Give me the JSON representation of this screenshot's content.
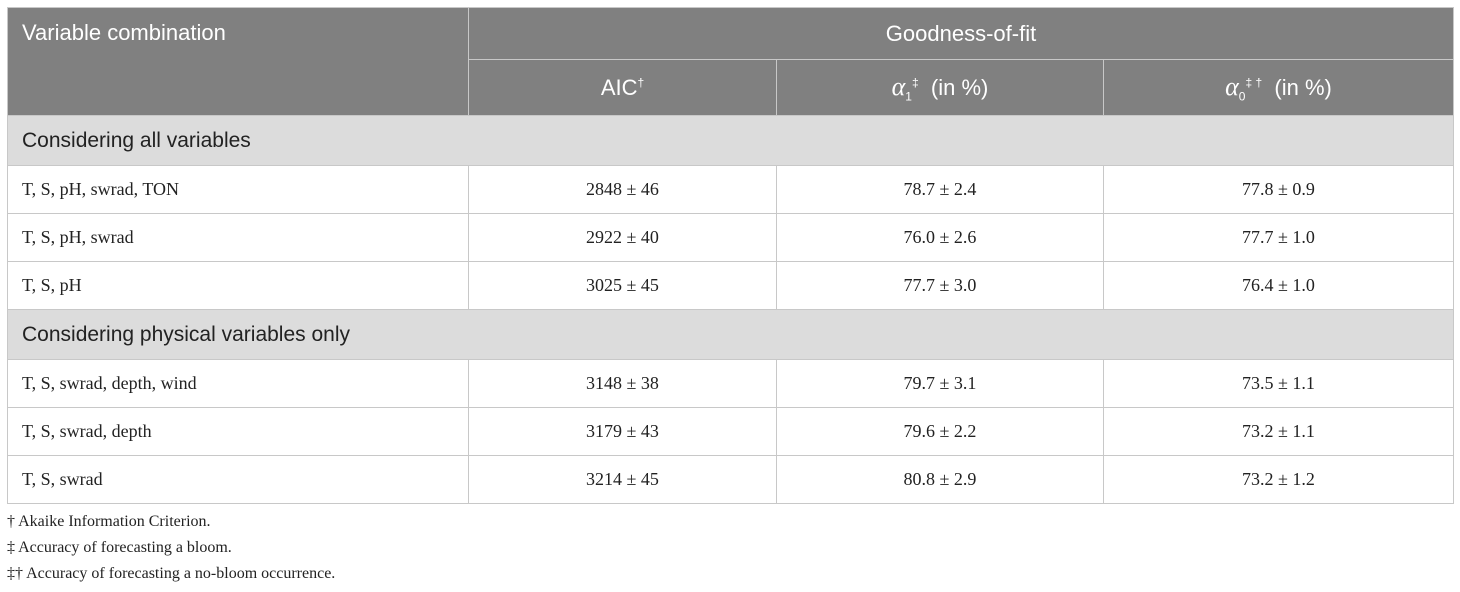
{
  "table": {
    "header": {
      "variable": "Variable combination",
      "group": "Goodness-of-fit",
      "aic": {
        "text": "AIC",
        "sup": "†"
      },
      "alpha1": {
        "symbol": "α",
        "sub": "1",
        "sup": "‡",
        "text": "(in %)"
      },
      "alpha0": {
        "symbol": "α",
        "sub": "0",
        "sup": "‡ †",
        "text": "(in %)"
      }
    },
    "sections": [
      {
        "title": "Considering all variables",
        "rows": [
          [
            "T, S, pH, swrad, TON",
            "2848 ± 46",
            "78.7 ± 2.4",
            "77.8 ± 0.9"
          ],
          [
            "T, S, pH, swrad",
            "2922 ± 40",
            "76.0 ± 2.6",
            "77.7 ± 1.0"
          ],
          [
            "T, S, pH",
            "3025 ± 45",
            "77.7 ± 3.0",
            "76.4 ± 1.0"
          ]
        ]
      },
      {
        "title": "Considering physical variables only",
        "rows": [
          [
            "T, S, swrad, depth, wind",
            "3148 ± 38",
            "79.7 ± 3.1",
            "73.5 ± 1.1"
          ],
          [
            "T, S, swrad, depth",
            "3179 ± 43",
            "79.6 ± 2.2",
            "73.2 ± 1.1"
          ],
          [
            "T, S, swrad",
            "3214 ± 45",
            "80.8 ± 2.9",
            "73.2 ± 1.2"
          ]
        ]
      }
    ],
    "footnotes": [
      "† Akaike Information Criterion.",
      "‡ Accuracy of forecasting a bloom.",
      "‡† Accuracy of forecasting a no-bloom occurrence."
    ]
  }
}
